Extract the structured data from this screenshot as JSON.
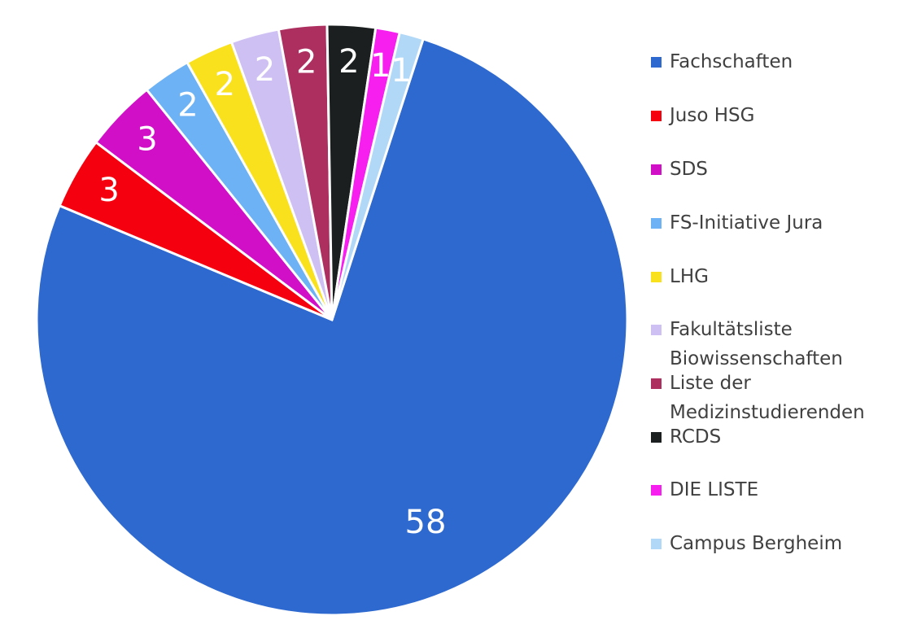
{
  "chart_data": {
    "type": "pie",
    "categories": [
      "Fachschaften",
      "Juso HSG",
      "SDS",
      "FS-Initiative Jura",
      "LHG",
      "Fakultätsliste Biowissenschaften",
      "Liste der Medizinstudierenden",
      "RCDS",
      "DIE LISTE",
      "Campus Bergheim"
    ],
    "values": [
      58,
      3,
      3,
      2,
      2,
      2,
      2,
      2,
      1,
      1
    ],
    "colors": [
      "#2e69d0",
      "#f5000f",
      "#d00fc6",
      "#6cb2f4",
      "#f9e11e",
      "#cfc0f4",
      "#ad2f60",
      "#1b1f1f",
      "#f71ff0",
      "#b2d8f8"
    ],
    "legend": "right"
  }
}
